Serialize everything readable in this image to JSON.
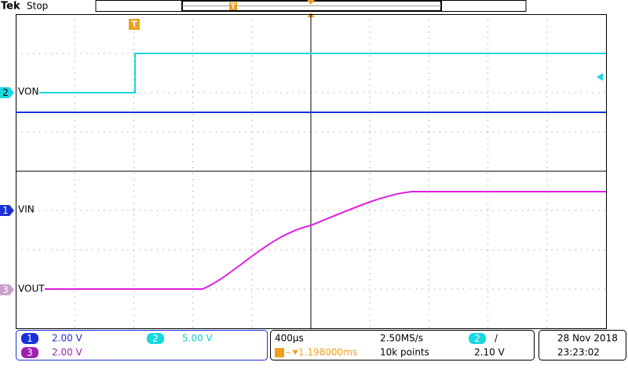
{
  "header": {
    "brand": "Tek",
    "status": "Stop"
  },
  "trigger_marker": "T",
  "channels": [
    {
      "number": "2",
      "label": "VON"
    },
    {
      "number": "1",
      "label": "VIN"
    },
    {
      "number": "3",
      "label": "VOUT"
    }
  ],
  "readout": {
    "vertical": [
      {
        "number": "1",
        "scale": "2.00 V"
      },
      {
        "number": "2",
        "scale": "5.00 V"
      },
      {
        "number": "3",
        "scale": "2.00 V"
      }
    ],
    "timebase": "400µs",
    "sample_rate": "2.50MS/s",
    "trigger_position": "1.198000ms",
    "record_length": "10k points",
    "trigger_channel": "2",
    "trigger_slope": "/",
    "trigger_level": "2.10 V",
    "date": "28 Nov 2018",
    "time": "23:23:02"
  }
}
